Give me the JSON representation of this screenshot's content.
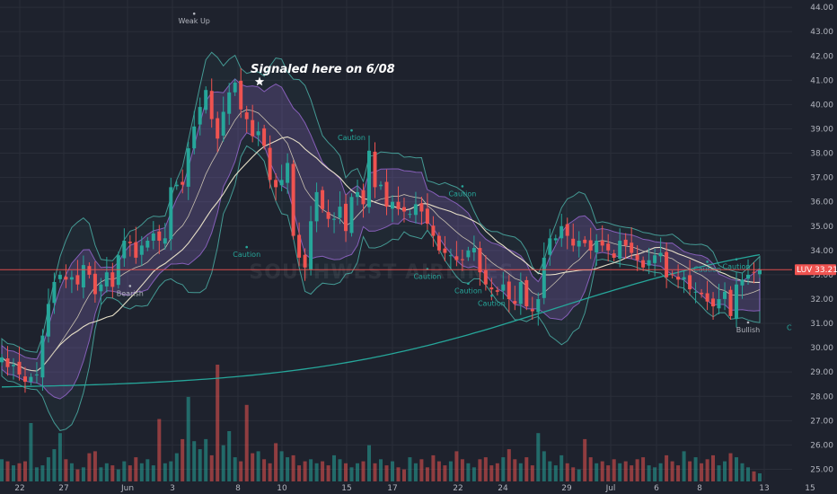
{
  "chart_data": {
    "type": "candlestick",
    "symbol": "LUV",
    "watermark": "SOUTHWEST AIRLINES",
    "last_price": "33.21",
    "annotation": "Signaled here on 6/08",
    "ylim": [
      24.5,
      44.3
    ],
    "yticks": [
      "25.00",
      "26.00",
      "27.00",
      "28.00",
      "29.00",
      "30.00",
      "31.00",
      "32.00",
      "33.00",
      "34.00",
      "35.00",
      "36.00",
      "37.00",
      "38.00",
      "39.00",
      "40.00",
      "41.00",
      "42.00",
      "43.00",
      "44.00"
    ],
    "xticks": [
      "22",
      "27",
      "Jun",
      "3",
      "8",
      "10",
      "15",
      "17",
      "22",
      "24",
      "29",
      "Jul",
      "6",
      "8",
      "13",
      "15"
    ],
    "grid": true,
    "colors": {
      "up": "#26a69a",
      "down": "#ef5350",
      "background": "#1e222d",
      "band_outer": "#4db6ac",
      "band_inner": "#9c6ad6",
      "ma_slow": "#26a69a",
      "ma_fast": "#e8e0c8",
      "price_line": "#ef5350",
      "label_text": "#d1d4dc"
    },
    "closes": [
      29.6,
      29.2,
      29.3,
      28.9,
      28.6,
      28.8,
      28.9,
      30.5,
      31.8,
      32.7,
      33.0,
      32.8,
      32.9,
      32.6,
      33.4,
      33.0,
      32.2,
      32.6,
      33.1,
      32.5,
      33.8,
      34.4,
      34.3,
      33.7,
      34.2,
      34.4,
      34.7,
      34.4,
      34.5,
      36.6,
      36.7,
      36.7,
      38.2,
      39.1,
      39.9,
      40.6,
      39.4,
      38.6,
      39.7,
      40.5,
      40.9,
      39.8,
      39.4,
      38.7,
      38.9,
      38.3,
      36.9,
      36.6,
      36.9,
      37.6,
      34.6,
      33.7,
      33.3,
      35.2,
      36.4,
      35.7,
      35.3,
      35.3,
      35.8,
      34.8,
      36.2,
      36.4,
      35.9,
      38.1,
      36.6,
      36.7,
      35.8,
      36.0,
      35.7,
      35.6,
      35.5,
      35.9,
      35.6,
      35.1,
      34.6,
      34.0,
      33.9,
      33.8,
      33.6,
      33.6,
      34.0,
      34.1,
      33.1,
      32.6,
      32.4,
      32.3,
      32.6,
      32.0,
      31.8,
      32.7,
      31.7,
      31.5,
      32.0,
      33.7,
      34.5,
      34.5,
      35.0,
      34.6,
      34.2,
      34.4,
      34.3,
      34.0,
      34.4,
      34.2,
      34.0,
      33.7,
      34.4,
      34.2,
      33.9,
      33.6,
      33.3,
      33.6,
      33.8,
      33.9,
      32.9,
      33.0,
      32.8,
      32.9,
      32.4,
      32.3,
      32.2,
      31.9,
      31.7,
      32.0,
      32.3,
      31.3,
      32.6,
      32.8,
      33.0,
      33.1,
      33.21
    ],
    "volumes": [
      1.1,
      1.0,
      0.8,
      0.9,
      1.0,
      2.9,
      0.7,
      0.8,
      1.2,
      1.6,
      2.4,
      1.1,
      0.9,
      0.6,
      0.7,
      1.4,
      1.5,
      0.7,
      0.9,
      0.8,
      0.6,
      1.0,
      0.8,
      1.2,
      0.9,
      1.1,
      0.8,
      3.1,
      0.9,
      1.0,
      1.4,
      2.1,
      4.2,
      2.0,
      1.6,
      2.1,
      1.3,
      5.8,
      1.8,
      2.5,
      1.2,
      1.0,
      3.8,
      1.4,
      1.5,
      1.1,
      0.9,
      1.9,
      1.5,
      1.2,
      1.3,
      0.8,
      1.0,
      1.1,
      0.9,
      1.0,
      0.8,
      1.3,
      1.1,
      0.9,
      0.7,
      0.9,
      1.0,
      1.8,
      0.9,
      1.1,
      0.8,
      1.0,
      0.7,
      0.6,
      1.2,
      0.9,
      1.1,
      0.7,
      1.3,
      1.0,
      0.8,
      1.0,
      1.5,
      1.1,
      0.9,
      0.7,
      1.1,
      1.2,
      0.8,
      0.9,
      1.2,
      1.6,
      1.1,
      0.9,
      1.2,
      0.8,
      2.4,
      1.5,
      1.0,
      0.8,
      1.3,
      0.9,
      0.7,
      0.6,
      2.1,
      1.2,
      0.9,
      1.0,
      0.8,
      1.1,
      0.9,
      1.0,
      0.8,
      1.1,
      1.2,
      0.8,
      0.7,
      0.9,
      1.3,
      1.0,
      0.8,
      1.5,
      1.0,
      1.2,
      0.9,
      1.1,
      1.3,
      0.8,
      1.0,
      1.4,
      1.2,
      0.9,
      0.7,
      0.5,
      0.4
    ],
    "signals": [
      {
        "text": "Weak Up",
        "x_index": 33,
        "price": 43.7,
        "color": "#b2b5be",
        "pos": "below"
      },
      {
        "text": "Bearish",
        "x_index": 22,
        "price": 32.5,
        "color": "#b2b5be",
        "pos": "below"
      },
      {
        "text": "Caution",
        "x_index": 60,
        "price": 38.9,
        "color": "#26a69a",
        "pos": "below"
      },
      {
        "text": "Caution",
        "x_index": 42,
        "price": 34.1,
        "color": "#26a69a",
        "pos": "below"
      },
      {
        "text": "Caution",
        "x_index": 79,
        "price": 36.6,
        "color": "#26a69a",
        "pos": "below"
      },
      {
        "text": "Caution",
        "x_index": 73,
        "price": 33.2,
        "color": "#26a69a",
        "pos": "below"
      },
      {
        "text": "Caution",
        "x_index": 80,
        "price": 32.6,
        "color": "#26a69a",
        "pos": "below"
      },
      {
        "text": "Caution",
        "x_index": 84,
        "price": 32.1,
        "color": "#26a69a",
        "pos": "below"
      },
      {
        "text": "Caution",
        "x_index": 121,
        "price": 33.5,
        "color": "#26a69a",
        "pos": "below"
      },
      {
        "text": "Caution",
        "x_index": 126,
        "price": 33.6,
        "color": "#26a69a",
        "pos": "below"
      },
      {
        "text": "Caution",
        "x_index": 137,
        "price": 31.1,
        "color": "#26a69a",
        "pos": "below"
      },
      {
        "text": "Caution",
        "x_index": 152,
        "price": 33.6,
        "color": "#26a69a",
        "pos": "below"
      },
      {
        "text": "Caution",
        "x_index": 169,
        "price": 32.2,
        "color": "#26a69a",
        "pos": "below"
      },
      {
        "text": "Caution",
        "x_index": 175,
        "price": 31.3,
        "color": "#26a69a",
        "pos": "below"
      },
      {
        "text": "Caution",
        "x_index": 178,
        "price": 30.9,
        "color": "#26a69a",
        "pos": "below"
      },
      {
        "text": "Bullish",
        "x_index": 128,
        "price": 31.0,
        "color": "#b2b5be",
        "pos": "below"
      }
    ]
  }
}
